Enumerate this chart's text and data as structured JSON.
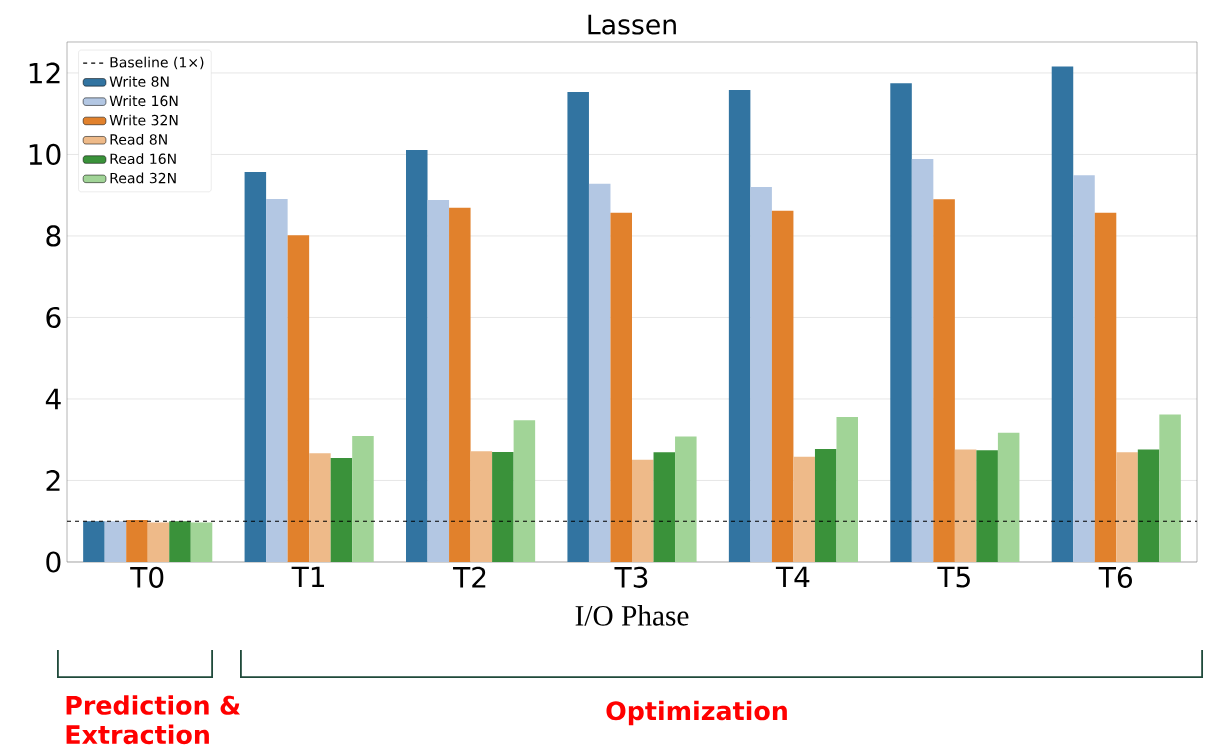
{
  "chart_data": {
    "type": "bar",
    "title": "Lassen",
    "xlabel": "I/O Phase",
    "categories": [
      "T0",
      "T1",
      "T2",
      "T3",
      "T4",
      "T5",
      "T6"
    ],
    "series": [
      {
        "name": "Write 8N",
        "color": "#3274a1",
        "values": [
          1.0,
          9.57,
          10.11,
          11.53,
          11.58,
          11.75,
          12.16
        ]
      },
      {
        "name": "Write 16N",
        "color": "#b3c7e3",
        "values": [
          1.0,
          8.91,
          8.88,
          9.28,
          9.2,
          9.89,
          9.49
        ]
      },
      {
        "name": "Write 32N",
        "color": "#e1812c",
        "values": [
          1.03,
          8.02,
          8.69,
          8.57,
          8.62,
          8.9,
          8.57
        ]
      },
      {
        "name": "Read 8N",
        "color": "#eeba89",
        "values": [
          0.97,
          2.67,
          2.72,
          2.51,
          2.58,
          2.76,
          2.69
        ]
      },
      {
        "name": "Read 16N",
        "color": "#3a923a",
        "values": [
          1.0,
          2.55,
          2.7,
          2.69,
          2.77,
          2.74,
          2.76
        ]
      },
      {
        "name": "Read 32N",
        "color": "#a1d497",
        "values": [
          0.97,
          3.09,
          3.48,
          3.08,
          3.56,
          3.17,
          3.62
        ]
      }
    ],
    "ylim": [
      0,
      12.76
    ],
    "yticks": [
      0,
      2,
      4,
      6,
      8,
      10,
      12
    ],
    "ref_lines": [
      {
        "axis": "y",
        "value": 1,
        "label": "Baseline (1×)",
        "color": "#000000",
        "line_style": "dashed"
      }
    ],
    "annotations": [
      "Prediction & Extraction",
      "Optimization"
    ],
    "grid": "y",
    "legend": "top left"
  }
}
